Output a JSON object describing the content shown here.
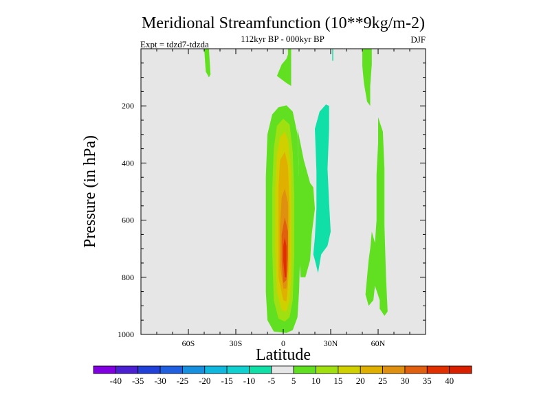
{
  "chart_data": {
    "type": "heatmap",
    "title": "Meridional Streamfunction (10**9kg/m-2)",
    "subtitle": "112kyr BP - 000kyr BP",
    "left_label": "Expt = tdzd7-tdzda",
    "right_label": "DJF",
    "xlabel": "Latitude",
    "ylabel": "Pressure (in hPa)",
    "xlim": [
      -90,
      90
    ],
    "ylim": [
      1000,
      0
    ],
    "x_ticks": [
      {
        "value": -60,
        "label": "60S"
      },
      {
        "value": -30,
        "label": "30S"
      },
      {
        "value": 0,
        "label": "0"
      },
      {
        "value": 30,
        "label": "30N"
      },
      {
        "value": 60,
        "label": "60N"
      }
    ],
    "y_ticks": [
      {
        "value": 200,
        "label": "200"
      },
      {
        "value": 400,
        "label": "400"
      },
      {
        "value": 600,
        "label": "600"
      },
      {
        "value": 800,
        "label": "800"
      },
      {
        "value": 1000,
        "label": "1000"
      }
    ],
    "colorbar": {
      "labels": [
        "-40",
        "-35",
        "-30",
        "-25",
        "-20",
        "-15",
        "-10",
        "-5",
        "5",
        "10",
        "15",
        "20",
        "25",
        "30",
        "35",
        "40"
      ],
      "colors": [
        "#8000e0",
        "#4a20d0",
        "#2040d8",
        "#2060e0",
        "#1890e0",
        "#10b8e0",
        "#10d0d0",
        "#10e0a8",
        "#e6e6e6",
        "#60e020",
        "#a0e010",
        "#d0d000",
        "#e0b000",
        "#e09010",
        "#e06010",
        "#e03000",
        "#d82000"
      ]
    },
    "background_color": "#e6e6e6",
    "regions": [
      {
        "name": "tropical-cell",
        "points": [
          [
            -6,
            990
          ],
          [
            -10,
            950
          ],
          [
            -11,
            850
          ],
          [
            -11,
            650
          ],
          [
            -11,
            450
          ],
          [
            -10,
            300
          ],
          [
            -7,
            230
          ],
          [
            -3,
            205
          ],
          [
            2,
            198
          ],
          [
            6,
            220
          ],
          [
            9,
            300
          ],
          [
            10,
            450
          ],
          [
            11,
            650
          ],
          [
            10,
            850
          ],
          [
            9,
            940
          ],
          [
            6,
            985
          ],
          [
            2,
            995
          ]
        ],
        "color": "#60e020"
      },
      {
        "name": "tropical-cell",
        "points": [
          [
            -3,
            945
          ],
          [
            -6,
            880
          ],
          [
            -7,
            700
          ],
          [
            -7,
            500
          ],
          [
            -6,
            350
          ],
          [
            -4,
            270
          ],
          [
            0,
            245
          ],
          [
            4,
            265
          ],
          [
            6,
            360
          ],
          [
            7,
            520
          ],
          [
            7,
            720
          ],
          [
            6,
            880
          ],
          [
            4,
            940
          ],
          [
            1,
            955
          ]
        ],
        "color": "#a0e010"
      },
      {
        "name": "tropical-cell",
        "points": [
          [
            -1,
            915
          ],
          [
            -4,
            850
          ],
          [
            -5,
            700
          ],
          [
            -5,
            500
          ],
          [
            -4,
            370
          ],
          [
            -2,
            310
          ],
          [
            1,
            290
          ],
          [
            3,
            320
          ],
          [
            5,
            430
          ],
          [
            5,
            620
          ],
          [
            5,
            800
          ],
          [
            4,
            880
          ],
          [
            2,
            920
          ]
        ],
        "color": "#d0d000"
      },
      {
        "name": "tropical-cell",
        "points": [
          [
            0,
            880
          ],
          [
            -3,
            800
          ],
          [
            -3,
            640
          ],
          [
            -3,
            480
          ],
          [
            -2,
            390
          ],
          [
            1,
            360
          ],
          [
            3,
            410
          ],
          [
            4,
            560
          ],
          [
            4,
            720
          ],
          [
            3,
            830
          ],
          [
            2,
            885
          ]
        ],
        "color": "#e0b000"
      },
      {
        "name": "tropical-cell",
        "points": [
          [
            0,
            840
          ],
          [
            -2,
            760
          ],
          [
            -2,
            620
          ],
          [
            -1,
            520
          ],
          [
            1,
            490
          ],
          [
            3,
            540
          ],
          [
            3,
            660
          ],
          [
            3,
            770
          ],
          [
            2,
            840
          ]
        ],
        "color": "#e09010"
      },
      {
        "name": "tropical-cell",
        "points": [
          [
            0,
            820
          ],
          [
            -1,
            740
          ],
          [
            -1,
            650
          ],
          [
            1,
            590
          ],
          [
            3,
            640
          ],
          [
            3,
            730
          ],
          [
            2,
            810
          ]
        ],
        "color": "#e06010"
      },
      {
        "name": "tropical-cell",
        "points": [
          [
            1,
            800
          ],
          [
            0,
            740
          ],
          [
            0,
            690
          ],
          [
            1,
            660
          ],
          [
            2,
            690
          ],
          [
            2,
            760
          ],
          [
            2,
            800
          ]
        ],
        "color": "#e03000"
      },
      {
        "name": "upper-equatorial-tongue",
        "points": [
          [
            3,
            0
          ],
          [
            5,
            0
          ],
          [
            5,
            130
          ],
          [
            2,
            120
          ],
          [
            -4,
            95
          ],
          [
            -1,
            55
          ],
          [
            2,
            35
          ],
          [
            3,
            20
          ]
        ],
        "color": "#60e020"
      },
      {
        "name": "upper-60s-patch",
        "points": [
          [
            -50,
            0
          ],
          [
            -47,
            0
          ],
          [
            -46,
            90
          ],
          [
            -47,
            100
          ],
          [
            -49,
            80
          ]
        ],
        "color": "#60e020"
      },
      {
        "name": "subtropical-25n-band",
        "points": [
          [
            20,
            280
          ],
          [
            23,
            220
          ],
          [
            27,
            195
          ],
          [
            29,
            200
          ],
          [
            29,
            280
          ],
          [
            28,
            420
          ],
          [
            29,
            540
          ],
          [
            30,
            640
          ],
          [
            28,
            690
          ],
          [
            24,
            720
          ],
          [
            22,
            785
          ],
          [
            20,
            740
          ],
          [
            19,
            720
          ],
          [
            20,
            660
          ],
          [
            21,
            560
          ],
          [
            21,
            520
          ],
          [
            21,
            430
          ]
        ],
        "color": "#10e0a8"
      },
      {
        "name": "30n-thin-line",
        "points": [
          [
            31,
            0
          ],
          [
            31.6,
            0
          ],
          [
            31.6,
            42
          ],
          [
            31,
            42
          ]
        ],
        "color": "#10e0a8"
      },
      {
        "name": "upper-55n-strip",
        "points": [
          [
            50,
            0
          ],
          [
            56,
            0
          ],
          [
            56,
            55
          ],
          [
            55,
            130
          ],
          [
            55,
            200
          ],
          [
            53,
            185
          ],
          [
            51,
            120
          ],
          [
            50,
            60
          ]
        ],
        "color": "#60e020"
      },
      {
        "name": "lower-60n-strip",
        "points": [
          [
            60,
            240
          ],
          [
            63,
            290
          ],
          [
            64,
            420
          ],
          [
            64,
            620
          ],
          [
            65,
            800
          ],
          [
            66,
            920
          ],
          [
            64,
            935
          ],
          [
            61,
            910
          ],
          [
            61,
            880
          ],
          [
            58,
            830
          ],
          [
            57,
            880
          ],
          [
            54,
            900
          ],
          [
            52,
            860
          ],
          [
            53,
            800
          ],
          [
            54,
            740
          ],
          [
            55,
            700
          ],
          [
            56,
            640
          ],
          [
            58,
            680
          ],
          [
            59,
            600
          ],
          [
            59,
            440
          ],
          [
            60,
            330
          ]
        ],
        "color": "#60e020"
      },
      {
        "name": "equatorward-15n-lobe",
        "points": [
          [
            9,
            280
          ],
          [
            13,
            390
          ],
          [
            17,
            470
          ],
          [
            19,
            485
          ],
          [
            20,
            560
          ],
          [
            18,
            650
          ],
          [
            17,
            740
          ],
          [
            14,
            800
          ],
          [
            11,
            800
          ],
          [
            10,
            720
          ],
          [
            10,
            600
          ],
          [
            10,
            450
          ]
        ],
        "color": "#60e020"
      }
    ]
  }
}
